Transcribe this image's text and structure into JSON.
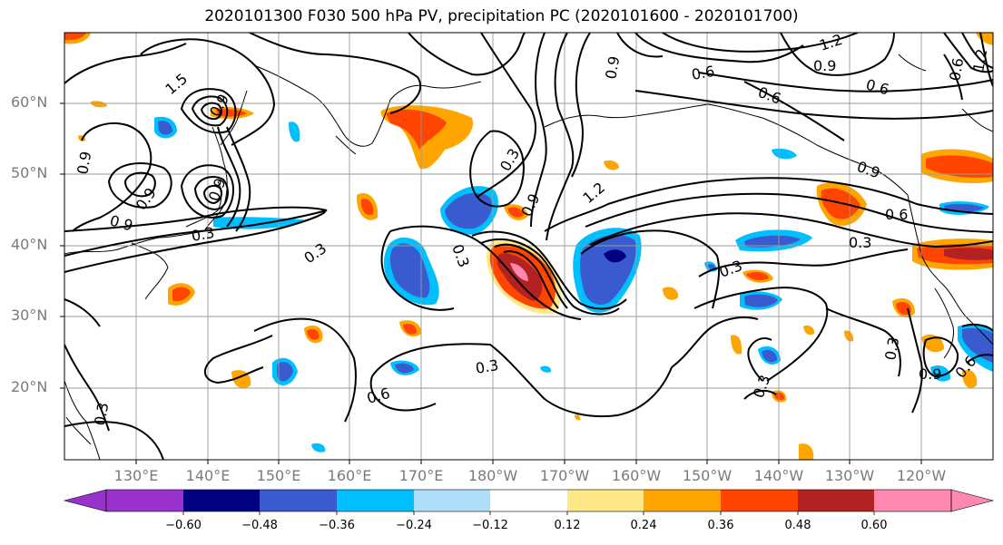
{
  "title": "2020101300 F030 500 hPa PV, precipitation PC (2020101600 - 2020101700)",
  "map": {
    "lat_labels": [
      "60°N",
      "50°N",
      "40°N",
      "30°N",
      "20°N"
    ],
    "lon_labels": [
      "130°E",
      "140°E",
      "150°E",
      "160°E",
      "170°E",
      "180°W",
      "170°W",
      "160°W",
      "150°W",
      "140°W",
      "130°W",
      "120°W"
    ],
    "grid": true,
    "contour_labels": [
      "1.2",
      "0.9",
      "0.6",
      "0.6",
      "0.6",
      "1.5",
      "0.9",
      "0.9",
      "0.9",
      "0.9",
      "0.9",
      "0.3",
      "0.3",
      "0.3",
      "0.3",
      "0.3",
      "0.3",
      "0.3",
      "0.9",
      "1.2",
      "0.6",
      "0.3",
      "0.6",
      "0.9",
      "0.9",
      "0.3",
      "0.6",
      "0.3",
      "0.6",
      "0.9",
      "1.2"
    ],
    "colors": {
      "land_line": "#000000",
      "grid": "#9a9a9a",
      "neg_060": "#9932cc",
      "neg_048": "#000080",
      "neg_036": "#3a5bd0",
      "neg_024": "#00bfff",
      "neg_012": "#afdefa",
      "neutral": "#ffffff",
      "pos_012": "#ffe888",
      "pos_024": "#ffa500",
      "pos_036": "#ff4500",
      "pos_048": "#b22222",
      "pos_060": "#ff88b0"
    }
  },
  "colorbar": {
    "ticks": [
      "−0.60",
      "−0.48",
      "−0.36",
      "−0.24",
      "−0.12",
      "0.12",
      "0.24",
      "0.36",
      "0.48",
      "0.60"
    ],
    "colors": [
      "#9932cc",
      "#000080",
      "#3a5bd0",
      "#00bfff",
      "#afdefa",
      "#ffffff",
      "#ffe888",
      "#ffa500",
      "#ff4500",
      "#b22222",
      "#ff88b0"
    ],
    "extend": "both"
  }
}
